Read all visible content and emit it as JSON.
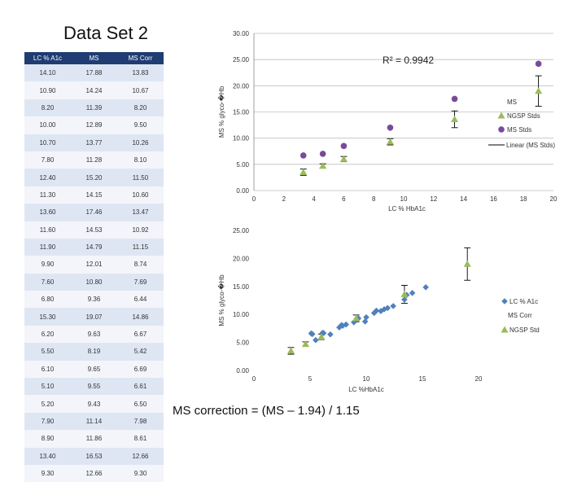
{
  "title": "Data Set 2",
  "table": {
    "headers": [
      "LC % A1c",
      "MS",
      "MS Corr"
    ],
    "rows": [
      [
        "14.10",
        "17.88",
        "13.83"
      ],
      [
        "10.90",
        "14.24",
        "10.67"
      ],
      [
        "8.20",
        "11.39",
        "8.20"
      ],
      [
        "10.00",
        "12.89",
        "9.50"
      ],
      [
        "10.70",
        "13.77",
        "10.26"
      ],
      [
        "7.80",
        "11.28",
        "8.10"
      ],
      [
        "12.40",
        "15.20",
        "11.50"
      ],
      [
        "11.30",
        "14.15",
        "10.60"
      ],
      [
        "13.60",
        "17.46",
        "13.47"
      ],
      [
        "11.60",
        "14.53",
        "10.92"
      ],
      [
        "11.90",
        "14.79",
        "11.15"
      ],
      [
        "9.90",
        "12.01",
        "8.74"
      ],
      [
        "7.60",
        "10.80",
        "7.69"
      ],
      [
        "6.80",
        "9.36",
        "6.44"
      ],
      [
        "15.30",
        "19.07",
        "14.86"
      ],
      [
        "6.20",
        "9.63",
        "6.67"
      ],
      [
        "5.50",
        "8.19",
        "5.42"
      ],
      [
        "6.10",
        "9.65",
        "6.69"
      ],
      [
        "5.10",
        "9.55",
        "6.61"
      ],
      [
        "5.20",
        "9.43",
        "6.50"
      ],
      [
        "7.90",
        "11.14",
        "7.98"
      ],
      [
        "8.90",
        "11.86",
        "8.61"
      ],
      [
        "13.40",
        "16.53",
        "12.66"
      ],
      [
        "9.30",
        "12.66",
        "9.30"
      ]
    ]
  },
  "formula": "MS correction = (MS – 1.94) / 1.15",
  "colors": {
    "ms": "#7a4a9a",
    "ngsp": "#9bbb59",
    "mscorr": "#4f81bd",
    "header": "#1f3c73",
    "grid": "#bfbfbf"
  },
  "chart_data": [
    {
      "type": "scatter",
      "xlabel": "LC % HbA1c",
      "ylabel": "MS % glyco-�Hb",
      "xlim": [
        0,
        20
      ],
      "ylim": [
        0,
        30
      ],
      "xticks": [
        "0",
        "2",
        "4",
        "6",
        "8",
        "10",
        "12",
        "14",
        "16",
        "18",
        "20"
      ],
      "yticks": [
        "0.00",
        "5.00",
        "10.00",
        "15.00",
        "20.00",
        "25.00",
        "30.00"
      ],
      "annotation": "R² = 0.9942",
      "series": [
        {
          "name": "MS",
          "marker": "none",
          "legend_only": true,
          "x": [],
          "y": []
        },
        {
          "name": "NGSP Stds",
          "marker": "triangle",
          "x": [
            3.3,
            4.6,
            6.0,
            9.1,
            13.4,
            19.0
          ],
          "y": [
            3.5,
            4.7,
            6.0,
            9.3,
            13.6,
            19.0
          ],
          "err": [
            0.6,
            0.4,
            0.5,
            0.6,
            1.6,
            2.9
          ]
        },
        {
          "name": "MS Stds",
          "marker": "circle",
          "x": [
            3.3,
            4.6,
            6.0,
            9.1,
            13.4,
            19.0
          ],
          "y": [
            6.7,
            7.0,
            8.5,
            12.0,
            17.5,
            24.2
          ]
        },
        {
          "name": "Linear (MS Stds)",
          "marker": "line",
          "x": [],
          "y": []
        }
      ]
    },
    {
      "type": "scatter",
      "xlabel": "LC %HbA1c",
      "ylabel": "MS % glyco-�Hb",
      "xlim": [
        0,
        20
      ],
      "ylim": [
        0,
        25
      ],
      "xticks": [
        "0",
        "5",
        "10",
        "15",
        "20"
      ],
      "yticks": [
        "0.00",
        "5.00",
        "10.00",
        "15.00",
        "20.00",
        "25.00"
      ],
      "series": [
        {
          "name": "LC % A1c",
          "marker": "diamond",
          "x": [
            14.1,
            10.9,
            8.2,
            10.0,
            10.7,
            7.8,
            12.4,
            11.3,
            13.6,
            11.6,
            11.9,
            9.9,
            7.6,
            6.8,
            15.3,
            6.2,
            5.5,
            6.1,
            5.1,
            5.2,
            7.9,
            8.9,
            13.4,
            9.3
          ],
          "y": [
            13.83,
            10.67,
            8.2,
            9.5,
            10.26,
            8.1,
            11.5,
            10.6,
            13.47,
            10.92,
            11.15,
            8.74,
            7.69,
            6.44,
            14.86,
            6.67,
            5.42,
            6.69,
            6.61,
            6.5,
            7.98,
            8.61,
            12.66,
            9.3
          ]
        },
        {
          "name": "MS Corr",
          "marker": "none",
          "legend_only": true,
          "x": [],
          "y": []
        },
        {
          "name": "NGSP Std",
          "marker": "triangle",
          "x": [
            3.3,
            4.6,
            6.0,
            9.1,
            13.4,
            19.0
          ],
          "y": [
            3.5,
            4.7,
            6.0,
            9.3,
            13.6,
            19.0
          ],
          "err": [
            0.6,
            0.4,
            0.5,
            0.6,
            1.6,
            2.9
          ]
        }
      ]
    }
  ]
}
